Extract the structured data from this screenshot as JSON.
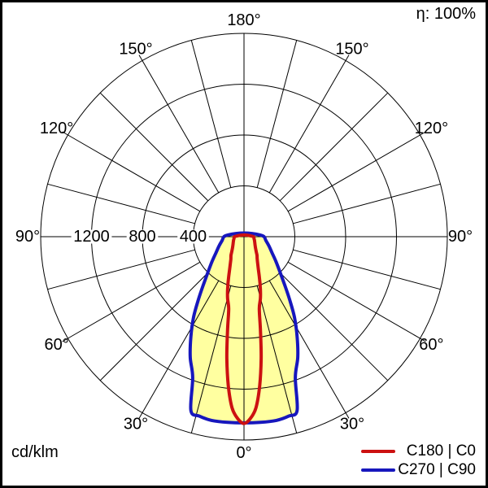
{
  "header": {
    "eta": "η: 100%"
  },
  "footer": {
    "unit": "cd/klm"
  },
  "legend": {
    "items": [
      {
        "label": "C180 | C0",
        "color": "#cc1111"
      },
      {
        "label": "C270 | C90",
        "color": "#1717bd"
      }
    ]
  },
  "chart_data": {
    "type": "polar",
    "subtype": "luminous-intensity-distribution",
    "unit": "cd/klm",
    "efficiency": "η: 100%",
    "rmax": 1600,
    "rings": [
      400,
      800,
      1200,
      1600
    ],
    "ring_labels": [
      {
        "value": 1200,
        "text": "1200"
      },
      {
        "value": 800,
        "text": "800"
      },
      {
        "value": 400,
        "text": "400"
      }
    ],
    "angle_label_values": [
      0,
      30,
      60,
      90,
      120,
      150,
      180
    ],
    "degree_suffix": "°",
    "spoke_step_deg": 15,
    "grid_color": "#000000",
    "fill_color": "#ffffa0",
    "background_color": "#ffffff",
    "series": [
      {
        "name": "C270 | C90",
        "color": "#1717bd",
        "fill": true,
        "symmetric": true,
        "points_gamma_intensity": [
          [
            0,
            1465
          ],
          [
            5,
            1467
          ],
          [
            10,
            1468
          ],
          [
            14,
            1455
          ],
          [
            17,
            1430
          ],
          [
            20,
            1180
          ],
          [
            24,
            1040
          ],
          [
            28,
            890
          ],
          [
            32,
            750
          ],
          [
            36,
            610
          ],
          [
            40,
            500
          ],
          [
            45,
            405
          ],
          [
            52,
            320
          ],
          [
            60,
            255
          ],
          [
            70,
            208
          ],
          [
            80,
            175
          ],
          [
            90,
            158
          ],
          [
            96,
            128
          ]
        ]
      },
      {
        "name": "C180 | C0",
        "color": "#cc1111",
        "fill": false,
        "symmetric": true,
        "points_gamma_intensity": [
          [
            0,
            1470
          ],
          [
            2,
            1432
          ],
          [
            4,
            1350
          ],
          [
            6,
            1180
          ],
          [
            8,
            970
          ],
          [
            10,
            745
          ],
          [
            12,
            580
          ],
          [
            15,
            500
          ],
          [
            18,
            415
          ],
          [
            21,
            335
          ],
          [
            25,
            262
          ],
          [
            30,
            208
          ],
          [
            35,
            178
          ],
          [
            40,
            148
          ],
          [
            50,
            115
          ],
          [
            60,
            98
          ],
          [
            70,
            88
          ],
          [
            80,
            80
          ],
          [
            90,
            76
          ],
          [
            96,
            55
          ]
        ]
      }
    ]
  }
}
